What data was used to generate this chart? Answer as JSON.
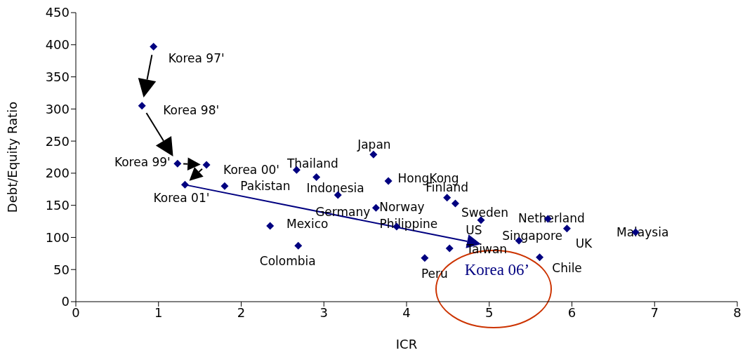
{
  "chart_data": {
    "type": "scatter",
    "xlabel": "ICR",
    "ylabel": "Debt/Equity Ratio",
    "xlim": [
      0,
      8
    ],
    "xticks": [
      0,
      1,
      2,
      3,
      4,
      5,
      6,
      7,
      8
    ],
    "ylim": [
      0,
      450
    ],
    "yticks": [
      0,
      50,
      100,
      150,
      200,
      250,
      300,
      350,
      400,
      450
    ],
    "grid": false,
    "legend": false,
    "marker": "diamond",
    "series": [
      {
        "color": "#000080",
        "x": [
          0.94,
          0.8,
          1.23,
          1.58,
          1.32,
          1.8,
          2.67,
          2.91,
          3.17,
          3.6,
          3.78,
          3.63,
          3.88,
          2.35,
          2.69,
          4.49,
          4.59,
          4.9,
          5.71,
          5.94,
          6.77,
          5.36,
          5.61,
          4.52,
          4.22
        ],
        "values": [
          397,
          305,
          215,
          213,
          182,
          180,
          205,
          194,
          166,
          229,
          188,
          146,
          117,
          118,
          87,
          162,
          153,
          127,
          129,
          114,
          108,
          95,
          69,
          83,
          68
        ]
      }
    ],
    "annotations": [
      {
        "text": "Korea 97'",
        "x": 0.94,
        "y": 397
      },
      {
        "text": "Korea 98'",
        "x": 0.8,
        "y": 305
      },
      {
        "text": "Korea 99'",
        "x": 1.23,
        "y": 215
      },
      {
        "text": "Korea 00'",
        "x": 1.58,
        "y": 213
      },
      {
        "text": "Korea 01'",
        "x": 1.32,
        "y": 182
      },
      {
        "text": "Pakistan",
        "x": 1.8,
        "y": 180
      },
      {
        "text": "Thailand",
        "x": 2.67,
        "y": 205
      },
      {
        "text": "Indonesia",
        "x": 2.91,
        "y": 194
      },
      {
        "text": "Germany",
        "x": 3.17,
        "y": 166
      },
      {
        "text": "Japan",
        "x": 3.6,
        "y": 229
      },
      {
        "text": "HongKong",
        "x": 3.78,
        "y": 188
      },
      {
        "text": "Norway",
        "x": 3.63,
        "y": 146
      },
      {
        "text": "Philippine",
        "x": 3.88,
        "y": 117
      },
      {
        "text": "Mexico",
        "x": 2.35,
        "y": 118
      },
      {
        "text": "Colombia",
        "x": 2.69,
        "y": 87
      },
      {
        "text": "Finland",
        "x": 4.49,
        "y": 162
      },
      {
        "text": "Sweden",
        "x": 4.59,
        "y": 153
      },
      {
        "text": "US",
        "x": 4.9,
        "y": 127
      },
      {
        "text": "Netherland",
        "x": 5.71,
        "y": 129
      },
      {
        "text": "UK",
        "x": 5.94,
        "y": 114
      },
      {
        "text": "Malaysia",
        "x": 6.77,
        "y": 108
      },
      {
        "text": "Singapore",
        "x": 5.36,
        "y": 95
      },
      {
        "text": "Chile",
        "x": 5.61,
        "y": 69
      },
      {
        "text": "Taiwan",
        "x": 4.52,
        "y": 83
      },
      {
        "text": "Peru",
        "x": 4.22,
        "y": 68
      },
      "Korea 06’"
    ]
  }
}
